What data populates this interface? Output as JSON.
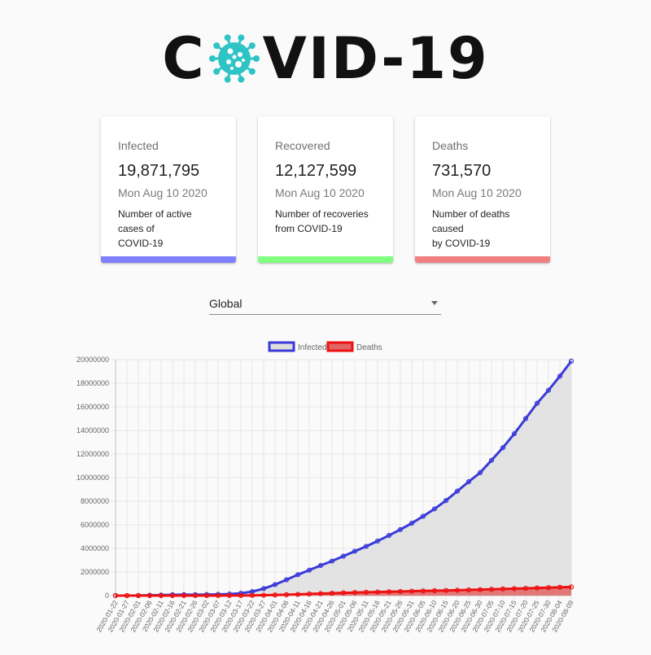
{
  "header": {
    "logo_left": "C",
    "logo_right": "VID-19",
    "logo_icon": "virus-icon",
    "logo_icon_color": "#2ec4c6"
  },
  "cards": [
    {
      "title": "Infected",
      "value": "19,871,795",
      "date": "Mon Aug 10 2020",
      "description_line1": "Number of active cases of",
      "description_line2": "COVID-19",
      "color": "#8080ff"
    },
    {
      "title": "Recovered",
      "value": "12,127,599",
      "date": "Mon Aug 10 2020",
      "description_line1": "Number of recoveries",
      "description_line2": "from COVID-19",
      "color": "#80ff80"
    },
    {
      "title": "Deaths",
      "value": "731,570",
      "date": "Mon Aug 10 2020",
      "description_line1": "Number of deaths caused",
      "description_line2": "by COVID-19",
      "color": "#f08080"
    }
  ],
  "country_select": {
    "selected": "Global",
    "icon": "arrow-drop-down-icon"
  },
  "chart_data": {
    "type": "area",
    "title": "",
    "xlabel": "",
    "ylabel": "",
    "ylim": [
      0,
      20000000
    ],
    "y_ticks": [
      0,
      2000000,
      4000000,
      6000000,
      8000000,
      10000000,
      12000000,
      14000000,
      16000000,
      18000000,
      20000000
    ],
    "grid": true,
    "legend_position": "top",
    "x_tick_labels": [
      "2020-01-22",
      "2020-01-27",
      "2020-02-01",
      "2020-02-06",
      "2020-02-11",
      "2020-02-16",
      "2020-02-21",
      "2020-02-26",
      "2020-03-02",
      "2020-03-07",
      "2020-03-12",
      "2020-03-17",
      "2020-03-22",
      "2020-03-27",
      "2020-04-01",
      "2020-04-06",
      "2020-04-11",
      "2020-04-16",
      "2020-04-21",
      "2020-04-26",
      "2020-05-01",
      "2020-05-06",
      "2020-05-11",
      "2020-05-16",
      "2020-05-21",
      "2020-05-26",
      "2020-05-31",
      "2020-06-05",
      "2020-06-10",
      "2020-06-15",
      "2020-06-20",
      "2020-06-25",
      "2020-06-30",
      "2020-07-05",
      "2020-07-10",
      "2020-07-15",
      "2020-07-20",
      "2020-07-25",
      "2020-07-30",
      "2020-08-04",
      "2020-08-09"
    ],
    "series": [
      {
        "name": "Infected",
        "color": "#3a3ad8",
        "fill": "#dedede",
        "values": [
          555,
          2927,
          12038,
          30818,
          45172,
          71337,
          78588,
          81394,
          90308,
          105820,
          128343,
          197168,
          335955,
          592881,
          932605,
          1343053,
          1771514,
          2158075,
          2549194,
          2927889,
          3343777,
          3762306,
          4175578,
          4624059,
          5098617,
          5597102,
          6135913,
          6726779,
          7350302,
          8054187,
          8851813,
          9653044,
          10420000,
          11470000,
          12540000,
          13720000,
          15000000,
          16300000,
          17400000,
          18600000,
          19871795
        ]
      },
      {
        "name": "Deaths",
        "color": "#ee1111",
        "fill": "#e26565",
        "values": [
          17,
          82,
          259,
          565,
          1118,
          1775,
          2248,
          2770,
          3110,
          3560,
          4729,
          8090,
          14790,
          30860,
          52030,
          77000,
          101000,
          141000,
          172000,
          200000,
          234000,
          261000,
          284000,
          305000,
          327000,
          346000,
          374000,
          396000,
          416000,
          434000,
          456000,
          480000,
          506000,
          534000,
          561000,
          588000,
          615000,
          645000,
          675000,
          705000,
          731570
        ]
      }
    ]
  }
}
